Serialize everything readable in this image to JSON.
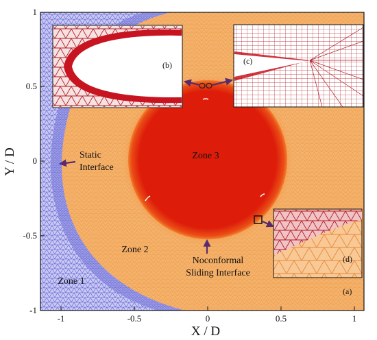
{
  "axes": {
    "x_label": "X / D",
    "y_label": "Y / D",
    "x_ticks": [
      "-1",
      "-0.5",
      "0",
      "0.5",
      "1"
    ],
    "y_ticks": [
      "1",
      "0.5",
      "0",
      "-0.5",
      "-1"
    ]
  },
  "zones": {
    "zone1": "Zone 1",
    "zone2": "Zone 2",
    "zone3": "Zone 3"
  },
  "annotations": {
    "static_line1": "Static",
    "static_line2": "Interface",
    "sliding_line1": "Noconformal",
    "sliding_line2": "Sliding Interface"
  },
  "insets": {
    "a": "(a)",
    "b": "(b)",
    "c": "(c)",
    "d": "(d)"
  },
  "colors": {
    "zone1_mesh": "#6b6bd9",
    "zone2_fill": "#f2a35a",
    "zone3_fill": "#dd1c0a",
    "arrow": "#5a2a6e",
    "mesh_red": "#b0202a"
  }
}
